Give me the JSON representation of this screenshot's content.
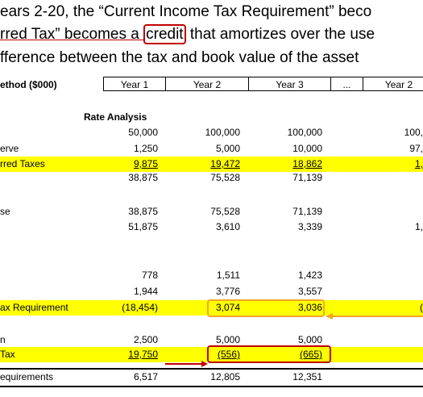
{
  "text": {
    "line1": "ears 2-20, the “Current Income Tax Requirement” beco",
    "line2_before": "rred Tax” becomes a ",
    "line2_boxed": "credit",
    "line2_after": " that amortizes over the use",
    "line3": "fference between the tax and book value of the asset"
  },
  "table": {
    "header": [
      "ethod ($000)",
      "Year 1",
      "Year 2",
      "Year 3",
      "...",
      "Year 2"
    ],
    "section_title": "Rate Analysis",
    "rows": [
      {
        "label": null,
        "cells": [
          "50,000",
          "100,000",
          "100,000",
          "100,"
        ]
      },
      {
        "label": "erve",
        "cells": [
          "1,250",
          "5,000",
          "10,000",
          "97,"
        ]
      },
      {
        "label": "rred Taxes",
        "cells": [
          "9,875",
          "19,472",
          "18,862",
          "1,"
        ]
      },
      {
        "label": null,
        "cells": [
          "38,875",
          "75,528",
          "71,139",
          null
        ]
      },
      {
        "label": "se",
        "cells": [
          "38,875",
          "75,528",
          "71,139",
          null
        ]
      },
      {
        "label": null,
        "cells": [
          "51,875",
          "3,610",
          "3,339",
          "1,"
        ]
      },
      {
        "label": null,
        "cells": [
          "778",
          "1,511",
          "1,423",
          null
        ]
      },
      {
        "label": null,
        "cells": [
          "1,944",
          "3,776",
          "3,557",
          null
        ]
      },
      {
        "label": "ax Requirement",
        "cells": [
          "(18,454)",
          "3,074",
          "3,036",
          "("
        ]
      },
      {
        "label": "n",
        "cells": [
          "2,500",
          "5,000",
          "5,000",
          null
        ]
      },
      {
        "label": "Tax",
        "cells": [
          "19,750",
          "(556)",
          "(665)",
          null
        ]
      },
      {
        "label": "equirements",
        "cells": [
          "6,517",
          "12,805",
          "12,351",
          null
        ]
      }
    ]
  }
}
